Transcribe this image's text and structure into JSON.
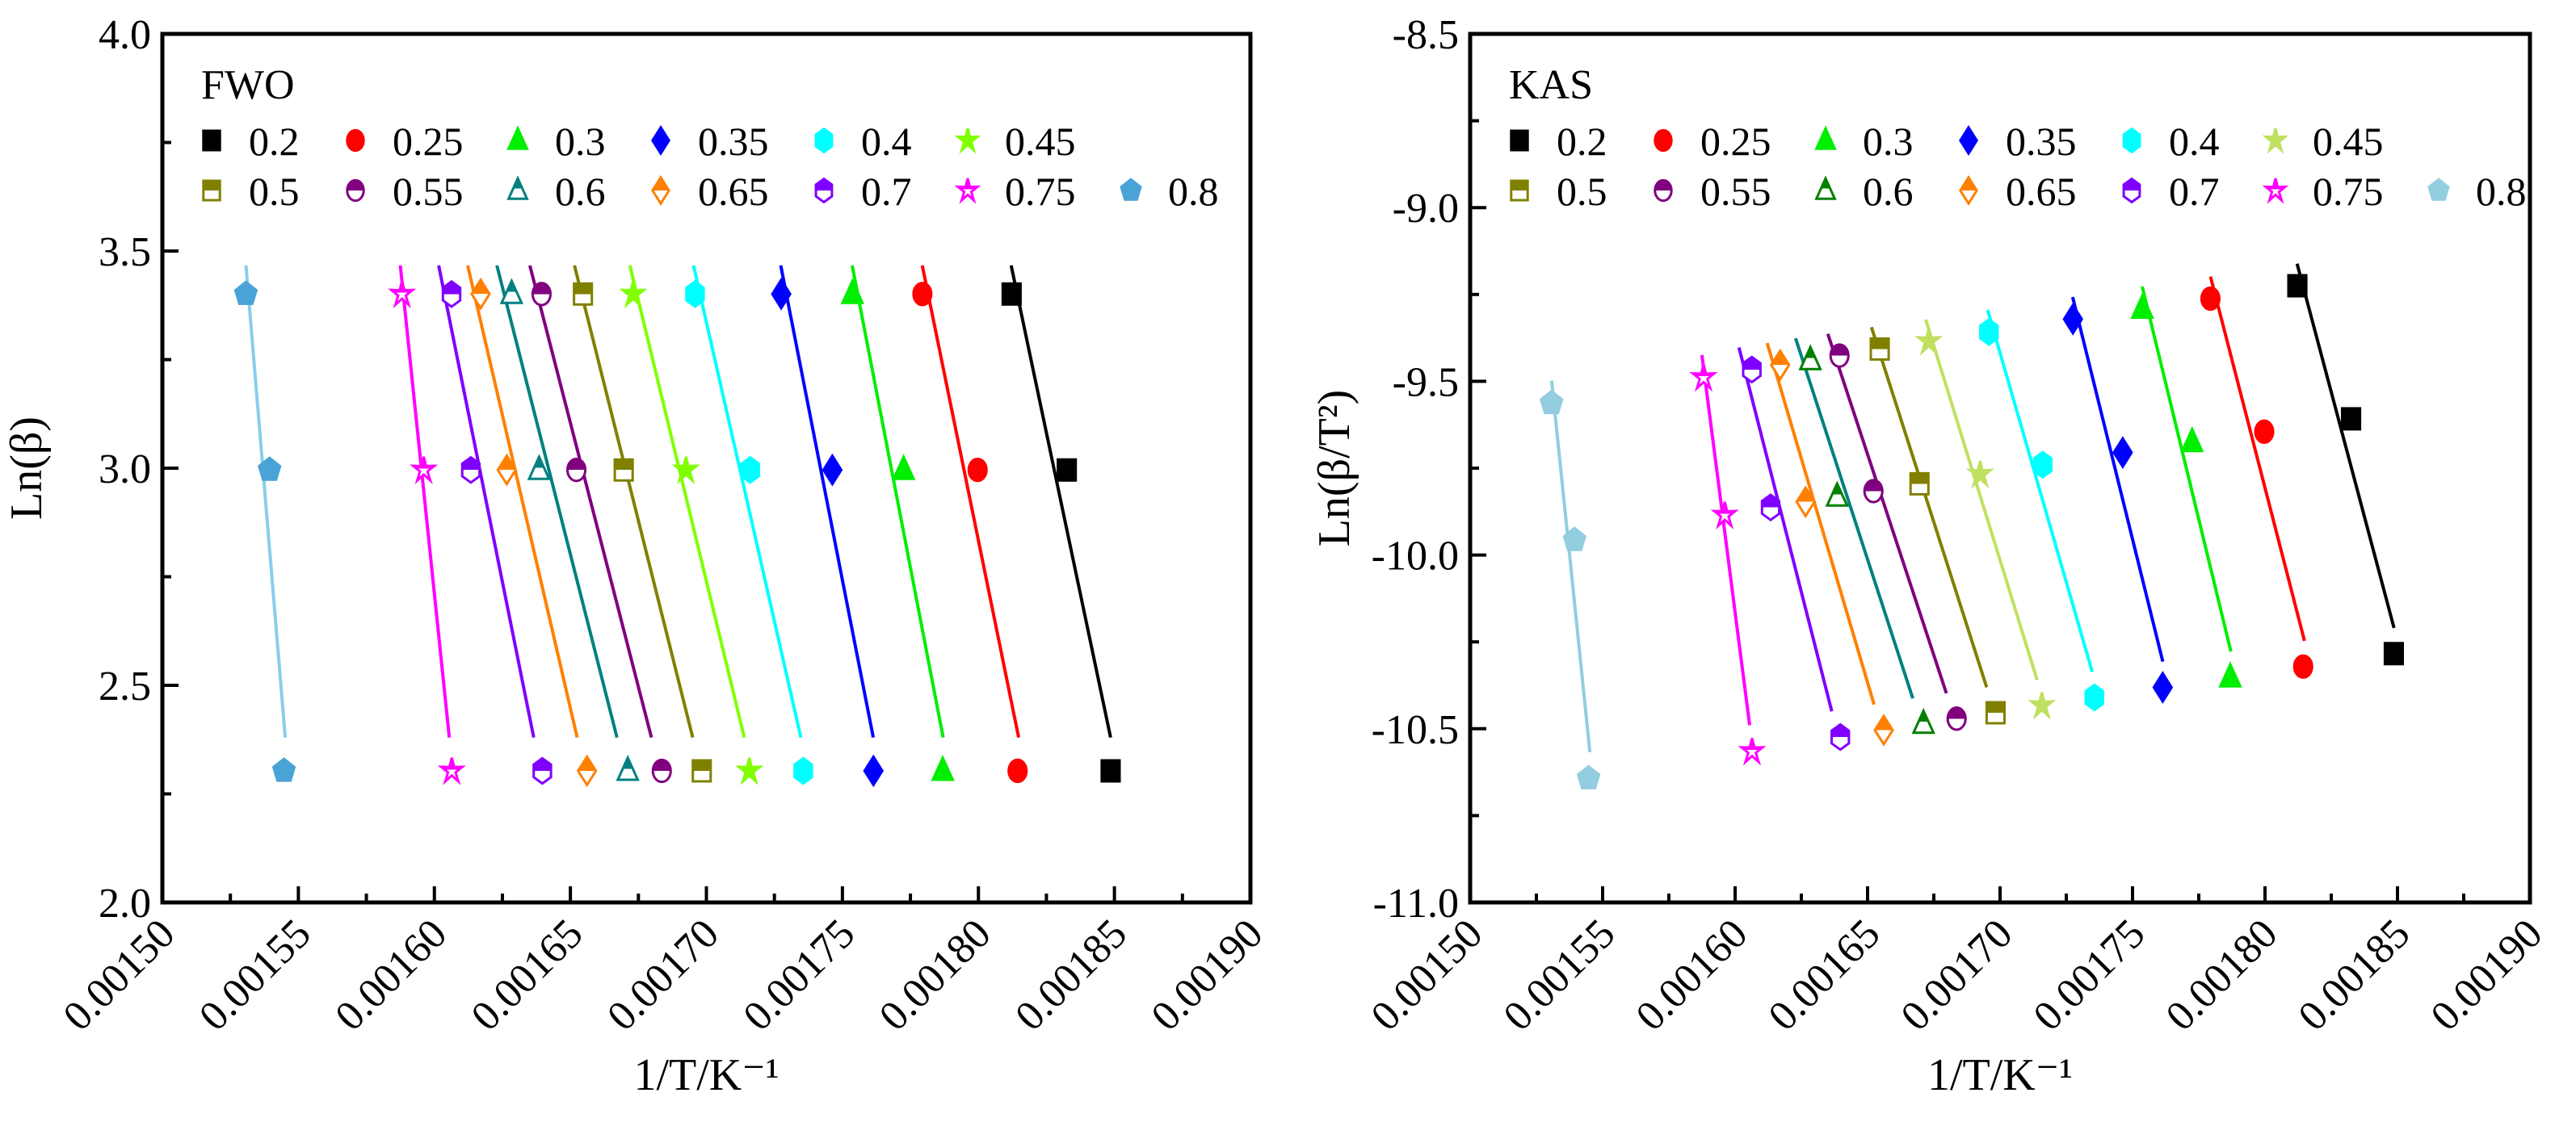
{
  "chart_data": [
    {
      "type": "scatter",
      "panel_label": "FWO",
      "xlabel": "1/T/K⁻¹",
      "ylabel": "Ln(β)",
      "xlim": [
        0.0015,
        0.0019
      ],
      "ylim": [
        2.0,
        4.0
      ],
      "xticks": [
        "0.00150",
        "0.00155",
        "0.00160",
        "0.00165",
        "0.00170",
        "0.00175",
        "0.00180",
        "0.00185",
        "0.00190"
      ],
      "yticks": [
        "2.0",
        "2.5",
        "3.0",
        "3.5",
        "4.0"
      ],
      "grid": false,
      "legend_placement": "top",
      "fit_lines": true,
      "series": [
        {
          "name": "0.2",
          "color": "#000000",
          "marker": "square",
          "fill": "full",
          "x": [
            0.0018122,
            0.0018325,
            0.0018486
          ],
          "y": [
            3.401,
            2.996,
            2.303
          ]
        },
        {
          "name": "0.25",
          "color": "#ff0000",
          "marker": "circle",
          "fill": "full",
          "x": [
            0.0017794,
            0.0017997,
            0.0018144
          ],
          "y": [
            3.401,
            2.996,
            2.303
          ]
        },
        {
          "name": "0.3",
          "color": "#00ee00",
          "marker": "triangle",
          "fill": "full",
          "x": [
            0.0017537,
            0.0017725,
            0.0017869
          ],
          "y": [
            3.401,
            2.996,
            2.303
          ]
        },
        {
          "name": "0.35",
          "color": "#0000ff",
          "marker": "diamond",
          "fill": "full",
          "x": [
            0.0017275,
            0.0017463,
            0.0017614
          ],
          "y": [
            3.401,
            2.996,
            2.303
          ]
        },
        {
          "name": "0.4",
          "color": "#00ffff",
          "marker": "hexagon",
          "fill": "full",
          "x": [
            0.0016958,
            0.0017161,
            0.0017356
          ],
          "y": [
            3.401,
            2.996,
            2.303
          ]
        },
        {
          "name": "0.45",
          "color": "#80ff00",
          "marker": "star",
          "fill": "full",
          "x": [
            0.0016731,
            0.0016925,
            0.0017158
          ],
          "y": [
            3.401,
            2.996,
            2.303
          ]
        },
        {
          "name": "0.5",
          "color": "#808000",
          "marker": "square",
          "fill": "half",
          "x": [
            0.0016546,
            0.0016696,
            0.0016983
          ],
          "y": [
            3.401,
            2.996,
            2.303
          ]
        },
        {
          "name": "0.55",
          "color": "#800080",
          "marker": "circle",
          "fill": "half",
          "x": [
            0.0016394,
            0.0016522,
            0.0016836
          ],
          "y": [
            3.401,
            2.996,
            2.303
          ]
        },
        {
          "name": "0.6",
          "color": "#008080",
          "marker": "triangle",
          "fill": "half",
          "x": [
            0.0016284,
            0.0016385,
            0.0016711
          ],
          "y": [
            3.401,
            2.996,
            2.303
          ]
        },
        {
          "name": "0.65",
          "color": "#ff8000",
          "marker": "diamond",
          "fill": "half",
          "x": [
            0.001617,
            0.0016266,
            0.0016561
          ],
          "y": [
            3.401,
            2.996,
            2.303
          ]
        },
        {
          "name": "0.7",
          "color": "#8000ff",
          "marker": "hexagon",
          "fill": "half",
          "x": [
            0.0016063,
            0.0016134,
            0.0016397
          ],
          "y": [
            3.401,
            2.996,
            2.303
          ]
        },
        {
          "name": "0.75",
          "color": "#ff00ff",
          "marker": "star",
          "fill": "half",
          "x": [
            0.0015881,
            0.0015961,
            0.0016064
          ],
          "y": [
            3.401,
            2.996,
            2.303
          ]
        },
        {
          "name": "0.8",
          "color": "#4aa3d6",
          "marker": "pentagon",
          "fill": "full",
          "line_color": "#87ceeb",
          "x": [
            0.0015307,
            0.0015394,
            0.0015447
          ],
          "y": [
            3.401,
            2.996,
            2.303
          ]
        }
      ]
    },
    {
      "type": "scatter",
      "panel_label": "KAS",
      "xlabel": "1/T/K⁻¹",
      "ylabel": "Ln(β/T²)",
      "xlim": [
        0.0015,
        0.0019
      ],
      "ylim": [
        -11.0,
        -8.5
      ],
      "xticks": [
        "0.00150",
        "0.00155",
        "0.00160",
        "0.00165",
        "0.00170",
        "0.00175",
        "0.00180",
        "0.00185",
        "0.00190"
      ],
      "yticks": [
        "-11.0",
        "-10.5",
        "-10.0",
        "-9.5",
        "-9.0",
        "-8.5"
      ],
      "grid": false,
      "legend_placement": "top",
      "fit_lines": true,
      "series": [
        {
          "name": "0.2",
          "color": "#000000",
          "marker": "square",
          "fill": "full",
          "x": [
            0.0018122,
            0.0018325,
            0.0018486
          ],
          "y": [
            -9.225,
            -9.608,
            -10.284
          ]
        },
        {
          "name": "0.25",
          "color": "#ff0000",
          "marker": "circle",
          "fill": "full",
          "x": [
            0.0017794,
            0.0017997,
            0.0018144
          ],
          "y": [
            -9.262,
            -9.645,
            -10.321
          ]
        },
        {
          "name": "0.3",
          "color": "#00ee00",
          "marker": "triangle",
          "fill": "full",
          "x": [
            0.0017537,
            0.0017725,
            0.0017869
          ],
          "y": [
            -9.291,
            -9.675,
            -10.352
          ]
        },
        {
          "name": "0.35",
          "color": "#0000ff",
          "marker": "diamond",
          "fill": "full",
          "x": [
            0.0017275,
            0.0017463,
            0.0017614
          ],
          "y": [
            -9.321,
            -9.705,
            -10.381
          ]
        },
        {
          "name": "0.4",
          "color": "#00ffff",
          "marker": "hexagon",
          "fill": "full",
          "x": [
            0.0016958,
            0.0017161,
            0.0017356
          ],
          "y": [
            -9.358,
            -9.74,
            -10.41
          ]
        },
        {
          "name": "0.45",
          "color": "#c0e060",
          "marker": "star",
          "fill": "full",
          "x": [
            0.0016731,
            0.0016925,
            0.0017158
          ],
          "y": [
            -9.385,
            -9.767,
            -10.433
          ]
        },
        {
          "name": "0.5",
          "color": "#808000",
          "marker": "square",
          "fill": "half",
          "x": [
            0.0016546,
            0.0016696,
            0.0016983
          ],
          "y": [
            -9.407,
            -9.795,
            -10.454
          ]
        },
        {
          "name": "0.55",
          "color": "#800080",
          "marker": "circle",
          "fill": "half",
          "x": [
            0.0016394,
            0.0016522,
            0.0016836
          ],
          "y": [
            -9.426,
            -9.816,
            -10.471
          ]
        },
        {
          "name": "0.6",
          "color": "#008000",
          "marker": "triangle",
          "fill": "half",
          "line_color": "#008080",
          "x": [
            0.0016284,
            0.0016385,
            0.0016711
          ],
          "y": [
            -9.439,
            -9.832,
            -10.486
          ]
        },
        {
          "name": "0.65",
          "color": "#ff8000",
          "marker": "diamond",
          "fill": "half",
          "x": [
            0.001617,
            0.0016266,
            0.0016561
          ],
          "y": [
            -9.453,
            -9.847,
            -10.504
          ]
        },
        {
          "name": "0.7",
          "color": "#8000ff",
          "marker": "hexagon",
          "fill": "half",
          "x": [
            0.0016063,
            0.0016134,
            0.0016397
          ],
          "y": [
            -9.466,
            -9.863,
            -10.524
          ]
        },
        {
          "name": "0.75",
          "color": "#ff00ff",
          "marker": "star",
          "fill": "half",
          "x": [
            0.0015881,
            0.0015961,
            0.0016064
          ],
          "y": [
            -9.489,
            -9.885,
            -10.565
          ]
        },
        {
          "name": "0.8",
          "color": "#92cde0",
          "marker": "pentagon",
          "fill": "full",
          "x": [
            0.0015307,
            0.0015394,
            0.0015447
          ],
          "y": [
            -9.563,
            -9.957,
            -10.643
          ]
        }
      ]
    }
  ]
}
